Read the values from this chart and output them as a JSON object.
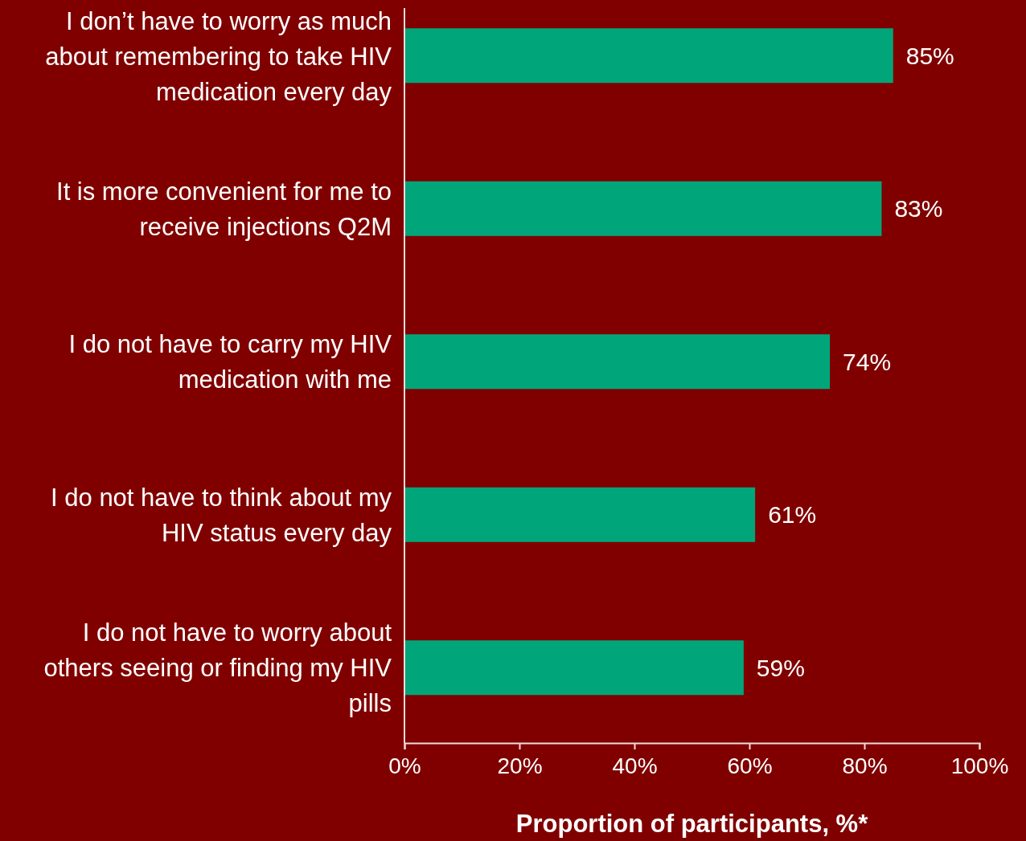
{
  "chart_data": {
    "type": "bar",
    "orientation": "horizontal",
    "xlabel": "Proportion of participants, %*",
    "categories": [
      "I don’t have to worry as much about remembering to take HIV medication every day",
      "It is more convenient for me to receive injections Q2M",
      "I do not have to carry my HIV medication with me",
      "I do not have to think about my HIV status every day",
      "I do not have to worry about others seeing or finding my HIV pills"
    ],
    "values": [
      85,
      83,
      74,
      61,
      59
    ],
    "value_labels": [
      "85%",
      "83%",
      "74%",
      "61%",
      "59%"
    ],
    "color": "#00a67a",
    "xlim": [
      0,
      100
    ],
    "xticks": [
      {
        "value": 0,
        "label": "0%"
      },
      {
        "value": 20,
        "label": "20%"
      },
      {
        "value": 40,
        "label": "40%"
      },
      {
        "value": 60,
        "label": "60%"
      },
      {
        "value": 80,
        "label": "80%"
      },
      {
        "value": 100,
        "label": "100%"
      }
    ],
    "grid": false
  }
}
